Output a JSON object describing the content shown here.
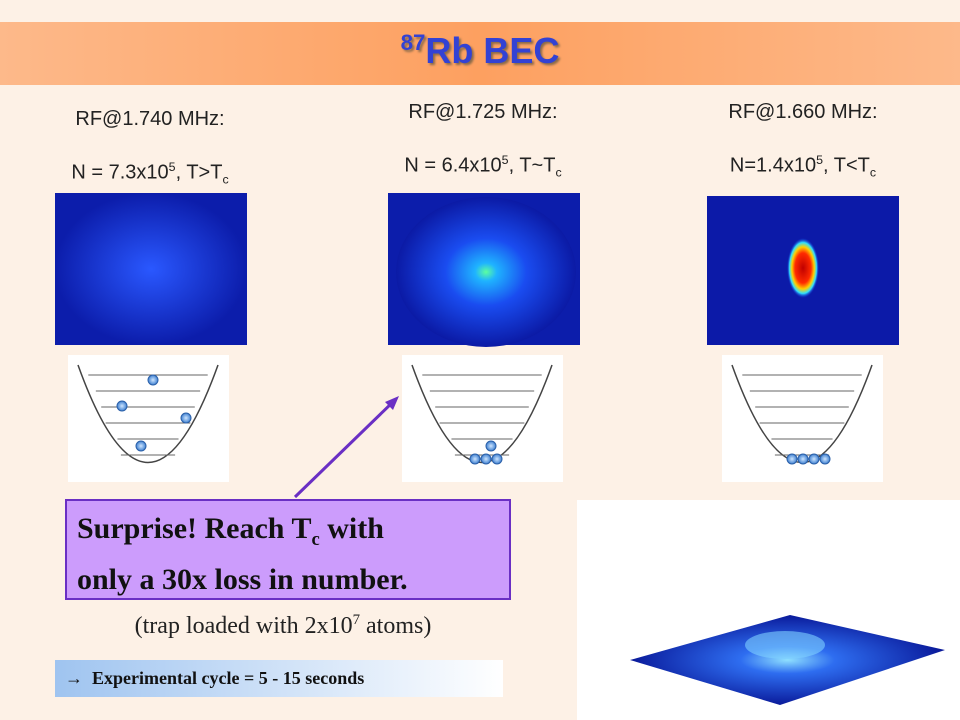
{
  "title": {
    "isotope": "87",
    "text": "Rb BEC"
  },
  "panels": [
    {
      "rf": "RF@1.740 MHz:",
      "n_main": "N = 7.3x10",
      "n_exp": "5",
      "n_rest": ", T>T",
      "n_sub": "c"
    },
    {
      "rf": "RF@1.725 MHz:",
      "n_main": "N = 6.4x10",
      "n_exp": "5",
      "n_rest": ", T~T",
      "n_sub": "c"
    },
    {
      "rf": "RF@1.660 MHz:",
      "n_main": "N=1.4x10",
      "n_exp": "5",
      "n_rest": ", T<T",
      "n_sub": "c"
    }
  ],
  "callout": {
    "line1_main": "Surprise! Reach T",
    "line1_sub": "c",
    "line1_end": " with",
    "line2": "only a 30x loss in number."
  },
  "note": {
    "main": "(trap loaded with 2x10",
    "exp": "7",
    "end": " atoms)"
  },
  "cycle": {
    "arrow": "→",
    "text": "Experimental cycle = 5 - 15 seconds"
  }
}
